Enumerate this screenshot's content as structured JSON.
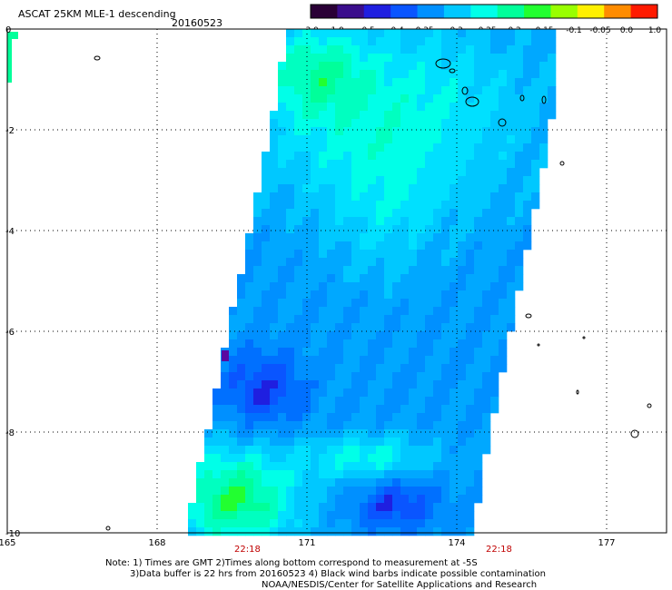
{
  "header": {
    "title": "ASCAT 25KM MLE-1 descending",
    "date": "20160523"
  },
  "colorbar": {
    "tick_labels": [
      "-3.0",
      "-1.0",
      "-0.5",
      "-0.4",
      "-0.35",
      "-0.3",
      "-0.25",
      "-0.2",
      "-0.15",
      "-0.1",
      "-0.05",
      "0.0",
      "1.0"
    ],
    "colors": [
      "#2a0036",
      "#3a0d8c",
      "#1f1fe0",
      "#0a55ff",
      "#0090ff",
      "#00c8ff",
      "#00ffe8",
      "#00ff9a",
      "#22ff30",
      "#99ff00",
      "#fff000",
      "#ff8c00",
      "#ff1a00"
    ]
  },
  "axes": {
    "x_ticks": [
      "165",
      "168",
      "171",
      "174",
      "177"
    ],
    "x_values": [
      165,
      168,
      171,
      174,
      177
    ],
    "y_ticks": [
      "0",
      "-2",
      "-4",
      "-6",
      "-8",
      "-10"
    ],
    "y_values": [
      0,
      -2,
      -4,
      -6,
      -8,
      -10
    ],
    "xlim": [
      165,
      178.2
    ],
    "ylim": [
      -10,
      0
    ],
    "grid": "dotted"
  },
  "times": [
    "22:18",
    "22:18"
  ],
  "notes": {
    "line1": "Note: 1) Times are GMT 2)Times along bottom correspond to measurement at -5S",
    "line2": "3)Data buffer is 22 hrs from 20160523 4) Black wind barbs indicate possible contamination",
    "line3": "NOAA/NESDIS/Center for Satellite Applications and Research"
  }
}
